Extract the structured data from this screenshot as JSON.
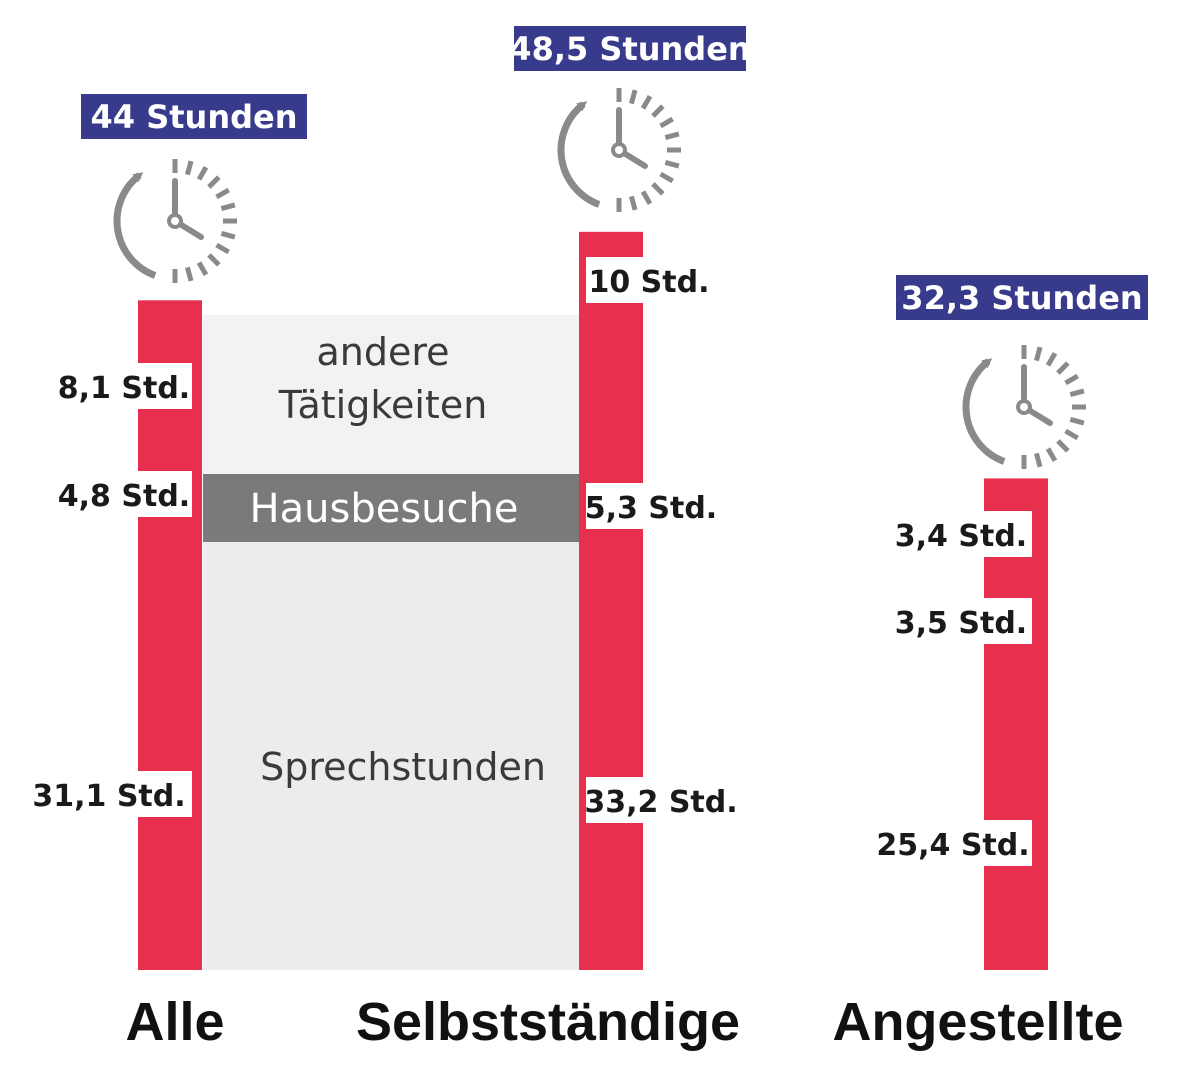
{
  "chart_data": {
    "type": "bar",
    "stacked": true,
    "unit": "Std.",
    "segment_names": [
      "Sprechstunden",
      "Hausbesuche",
      "andere Tätigkeiten"
    ],
    "bars": [
      {
        "name": "Alle",
        "total": 44,
        "total_label": "44 Stunden",
        "segments": [
          {
            "name": "Sprechstunden",
            "value": 31.1,
            "label": "31,1 Std."
          },
          {
            "name": "Hausbesuche",
            "value": 4.8,
            "label": "4,8 Std."
          },
          {
            "name": "andere Tätigkeiten",
            "value": 8.1,
            "label": "8,1 Std."
          }
        ]
      },
      {
        "name": "Selbstständige",
        "total": 48.5,
        "total_label": "48,5 Stunden",
        "segments": [
          {
            "name": "Sprechstunden",
            "value": 33.2,
            "label": "33,2 Std."
          },
          {
            "name": "Hausbesuche",
            "value": 5.3,
            "label": "5,3 Std."
          },
          {
            "name": "andere Tätigkeiten",
            "value": 10,
            "label": "10 Std."
          }
        ]
      },
      {
        "name": "Angestellte",
        "total": 32.3,
        "total_label": "32,3 Stunden",
        "segments": [
          {
            "name": "Sprechstunden",
            "value": 25.4,
            "label": "25,4 Std."
          },
          {
            "name": "Hausbesuche",
            "value": 3.5,
            "label": "3,5 Std."
          },
          {
            "name": "andere Tätigkeiten",
            "value": 3.4,
            "label": "3,4 Std."
          }
        ]
      }
    ],
    "band_labels": {
      "sprechstunden": "Sprechstunden",
      "hausbesuche": "Hausbesuche",
      "andere_line1": "andere",
      "andere_line2": "Tätigkeiten"
    },
    "colors": {
      "bar": "#e6304e",
      "band_light": "#ececec",
      "band_other": "#f2f2f2",
      "band_dark": "#7a7a7a",
      "badge": "#383b8b",
      "clock": "#8a8a8a"
    }
  }
}
